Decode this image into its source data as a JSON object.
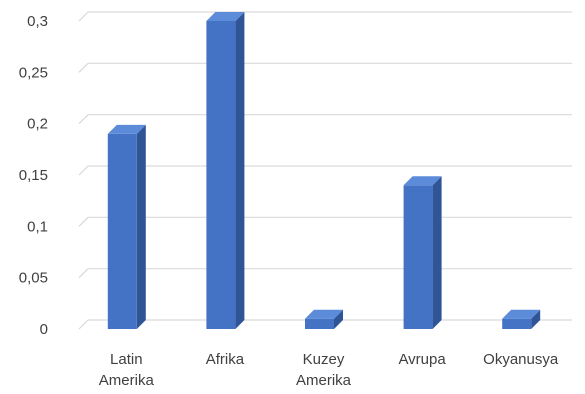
{
  "chart_data": {
    "type": "bar",
    "title": "",
    "xlabel": "",
    "ylabel": "",
    "categories": [
      [
        "Latin",
        "Amerika"
      ],
      [
        "Afrika"
      ],
      [
        "Kuzey",
        "Amerika"
      ],
      [
        "Avrupa"
      ],
      [
        "Okyanusya"
      ]
    ],
    "values": [
      0.19,
      0.3,
      0.01,
      0.14,
      0.01
    ],
    "ylim": [
      0,
      0.3
    ],
    "yticks": [
      0,
      0.05,
      0.1,
      0.15,
      0.2,
      0.25,
      0.3
    ],
    "ytick_labels": [
      "0",
      "0,05",
      "0,1",
      "0,15",
      "0,2",
      "0,25",
      "0,3"
    ],
    "grid": true,
    "legend": "none",
    "bar_style": "3d-column",
    "colors": {
      "bar_front": "#4472c4",
      "bar_side": "#2f5597",
      "bar_top": "#5b8bd9",
      "grid": "#d9d9d9",
      "text": "#404040"
    }
  }
}
